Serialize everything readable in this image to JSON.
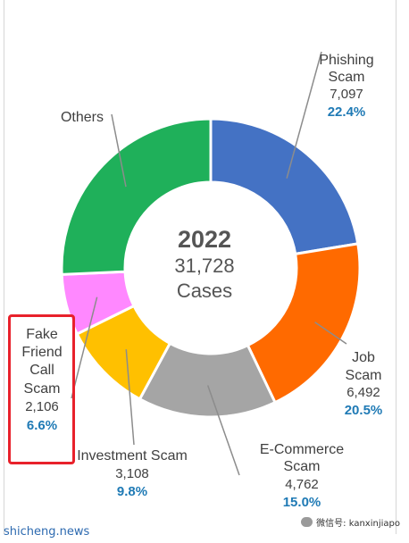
{
  "chart_data": {
    "type": "pie",
    "center": {
      "year": "2022",
      "total": "31,728",
      "unit": "Cases"
    },
    "slices": [
      {
        "label": [
          "Phishing",
          "Scam"
        ],
        "count": "7,097",
        "pct": "22.4%",
        "value": 22.4,
        "color": "#4472c4"
      },
      {
        "label": [
          "Job",
          "Scam"
        ],
        "count": "6,492",
        "pct": "20.5%",
        "value": 20.5,
        "color": "#ff6a00"
      },
      {
        "label": [
          "E-Commerce",
          "Scam"
        ],
        "count": "4,762",
        "pct": "15.0%",
        "value": 15.0,
        "color": "#a5a5a5"
      },
      {
        "label": [
          "Investment Scam"
        ],
        "count": "3,108",
        "pct": "9.8%",
        "value": 9.8,
        "color": "#ffc000"
      },
      {
        "label": [
          "Fake",
          "Friend",
          "Call",
          "Scam"
        ],
        "count": "2,106",
        "pct": "6.6%",
        "value": 6.6,
        "color": "#ff88ff"
      },
      {
        "label": [
          "Others"
        ],
        "count": "",
        "pct": "",
        "value": 25.7,
        "color": "#1fb05a"
      }
    ]
  },
  "watermark": {
    "left": "shicheng.news",
    "right": "微信号: kanxinjiapo"
  }
}
